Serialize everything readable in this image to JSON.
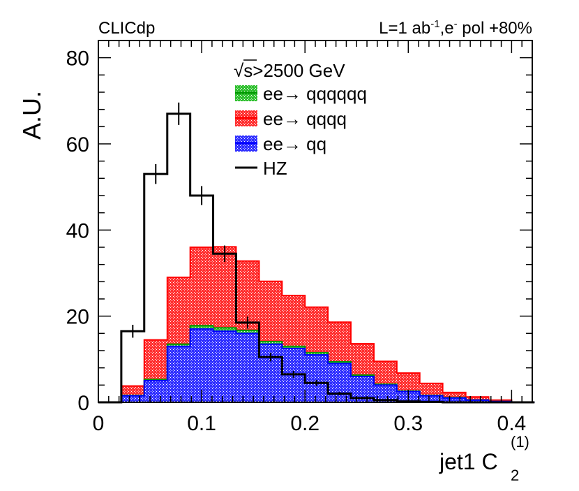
{
  "header": {
    "left_label": "CLICdp",
    "right_label": "L=1 ab",
    "right_label_sup": "-1",
    "right_label_mid": ",e",
    "right_label_sup2": "-",
    "right_label_end": " pol +80%"
  },
  "legend": {
    "header": "s>2500 GeV",
    "sqrt_symbol": "√"
  },
  "chart_data": {
    "type": "bar",
    "title": "",
    "xlabel": "jet1 C",
    "xlabel_sub": "2",
    "xlabel_sup": "(1)",
    "ylabel": "A.U.",
    "xlim": [
      0,
      0.42
    ],
    "ylim": [
      0,
      84
    ],
    "x_ticks": [
      "0",
      "0.1",
      "0.2",
      "0.3",
      "0.4"
    ],
    "y_ticks": [
      "0",
      "20",
      "40",
      "60",
      "80"
    ],
    "bin_edges": [
      0.0,
      0.0222,
      0.0444,
      0.0667,
      0.0889,
      0.1111,
      0.1333,
      0.1556,
      0.1778,
      0.2,
      0.2222,
      0.2444,
      0.2667,
      0.2889,
      0.3111,
      0.3333,
      0.3556,
      0.3778,
      0.4,
      0.4222
    ],
    "series": [
      {
        "name": "ee→ qq",
        "style": "stacked-fill",
        "fill": "#3333ff",
        "line": "#0000ff",
        "values": [
          0,
          1.5,
          5,
          13,
          17,
          16.5,
          16,
          13.5,
          12.5,
          11,
          9,
          6,
          4,
          2.5,
          1.5,
          1,
          0.5,
          0.2,
          0
        ]
      },
      {
        "name": "ee→ qqqqqq",
        "style": "stacked-fill",
        "fill": "#33cc33",
        "line": "#009900",
        "values": [
          0,
          0.1,
          0.3,
          0.5,
          0.8,
          0.8,
          0.7,
          0.6,
          0.5,
          0.5,
          0.4,
          0.3,
          0.2,
          0.1,
          0.1,
          0.1,
          0.05,
          0,
          0
        ]
      },
      {
        "name": "ee→ qqqq",
        "style": "stacked-fill",
        "fill": "#ff3333",
        "line": "#ff0000",
        "values": [
          0,
          2.2,
          9.2,
          15.5,
          18.2,
          18.8,
          16.1,
          14,
          11.8,
          10.6,
          9.2,
          7.3,
          5.3,
          4.2,
          2.8,
          1.2,
          0.7,
          0.3,
          0
        ]
      },
      {
        "name": "HZ",
        "style": "line-with-errors",
        "line": "#000000",
        "values": [
          0,
          16.5,
          53,
          67,
          48,
          34.5,
          18.5,
          10.5,
          6.5,
          4.5,
          2,
          1,
          0.5,
          0.2,
          0.1,
          0,
          0,
          0,
          0
        ],
        "errors": [
          0,
          1.5,
          2.3,
          2.6,
          2.2,
          1.9,
          1.4,
          1.0,
          0.8,
          0.7,
          0.4,
          0.3,
          0.2,
          0.1,
          0.1,
          0,
          0,
          0,
          0
        ]
      }
    ],
    "legend_order": [
      "ee→ qqqqqq",
      "ee→ qqqq",
      "ee→ qq",
      "HZ"
    ]
  }
}
